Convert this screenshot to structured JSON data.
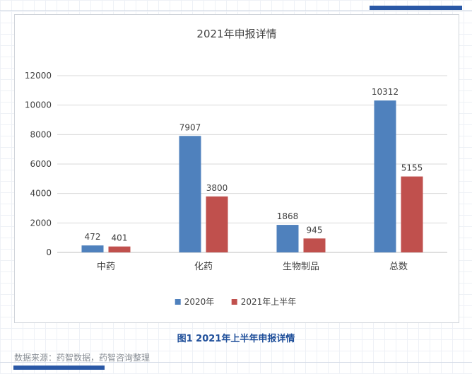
{
  "figure": {
    "caption": "图1 2021年上半年申报详情",
    "source": "数据来源：药智数据，药智咨询整理"
  },
  "chart_data": {
    "type": "bar",
    "title": "2021年申报详情",
    "xlabel": "",
    "ylabel": "",
    "categories": [
      "中药",
      "化药",
      "生物制品",
      "总数"
    ],
    "series": [
      {
        "name": "2020年",
        "values": [
          472,
          7907,
          1868,
          10312
        ],
        "color": "#4f81bd"
      },
      {
        "name": "2021年上半年",
        "values": [
          401,
          3800,
          945,
          5155
        ],
        "color": "#c0504d"
      }
    ],
    "ylim": [
      0,
      12000
    ],
    "yticks": [
      0,
      2000,
      4000,
      6000,
      8000,
      10000,
      12000
    ],
    "grid": true,
    "legend_position": "bottom",
    "data_labels": true
  }
}
